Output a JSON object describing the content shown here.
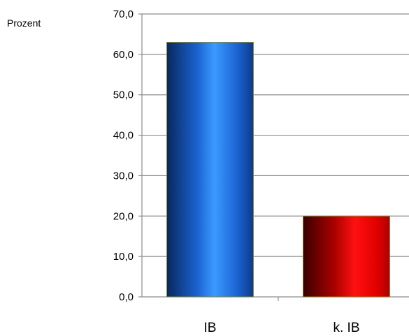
{
  "chart_data": {
    "type": "bar",
    "ylabel": "Prozent",
    "categories": [
      "IB",
      "k. IB"
    ],
    "values": [
      63.0,
      20.0
    ],
    "ylim": [
      0,
      70
    ],
    "yticks": [
      "0,0",
      "10,0",
      "20,0",
      "30,0",
      "40,0",
      "50,0",
      "60,0",
      "70,0"
    ],
    "grid": true,
    "legend": "none",
    "colors": [
      "#1a6fe0",
      "#e01010"
    ]
  }
}
